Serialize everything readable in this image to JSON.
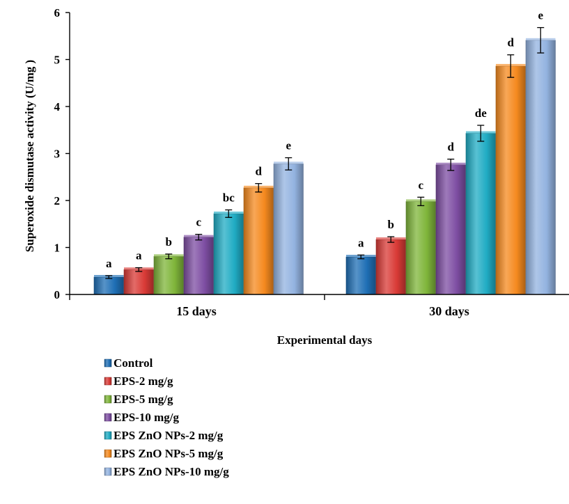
{
  "chart_data": {
    "type": "bar",
    "title": "",
    "xlabel": "Experimental days",
    "ylabel": "Superoxide dismutase activity (U/mg )",
    "ylim": [
      0,
      6
    ],
    "yticks": [
      "0",
      "1",
      "2",
      "3",
      "4",
      "5",
      "6"
    ],
    "categories": [
      "15 days",
      "30 days"
    ],
    "legend_position": "bottom-left",
    "grid": false,
    "series": [
      {
        "name": "Control",
        "color": "#1f6fb5",
        "values": [
          0.37,
          0.8
        ],
        "errors": [
          0.03,
          0.04
        ],
        "labels": [
          "a",
          "a"
        ]
      },
      {
        "name": "EPS-2 mg/g",
        "color": "#d93a36",
        "values": [
          0.53,
          1.17
        ],
        "errors": [
          0.04,
          0.06
        ],
        "labels": [
          "a",
          "b"
        ]
      },
      {
        "name": "EPS-5 mg/g",
        "color": "#7fb53a",
        "values": [
          0.81,
          1.98
        ],
        "errors": [
          0.05,
          0.09
        ],
        "labels": [
          "b",
          "c"
        ]
      },
      {
        "name": "EPS-10 mg/g",
        "color": "#7e4ea3",
        "values": [
          1.22,
          2.76
        ],
        "errors": [
          0.06,
          0.12
        ],
        "labels": [
          "c",
          "d"
        ]
      },
      {
        "name": "EPS ZnO NPs-2 mg/g",
        "color": "#20acc4",
        "values": [
          1.72,
          3.43
        ],
        "errors": [
          0.08,
          0.17
        ],
        "labels": [
          "bc",
          "de"
        ]
      },
      {
        "name": "EPS ZnO NPs-5 mg/g",
        "color": "#f58a1f",
        "values": [
          2.27,
          4.86
        ],
        "errors": [
          0.09,
          0.24
        ],
        "labels": [
          "d",
          "d"
        ]
      },
      {
        "name": "EPS ZnO NPs-10 mg/g",
        "color": "#93b3e0",
        "values": [
          2.78,
          5.41
        ],
        "errors": [
          0.13,
          0.27
        ],
        "labels": [
          "e",
          "e"
        ]
      }
    ]
  }
}
